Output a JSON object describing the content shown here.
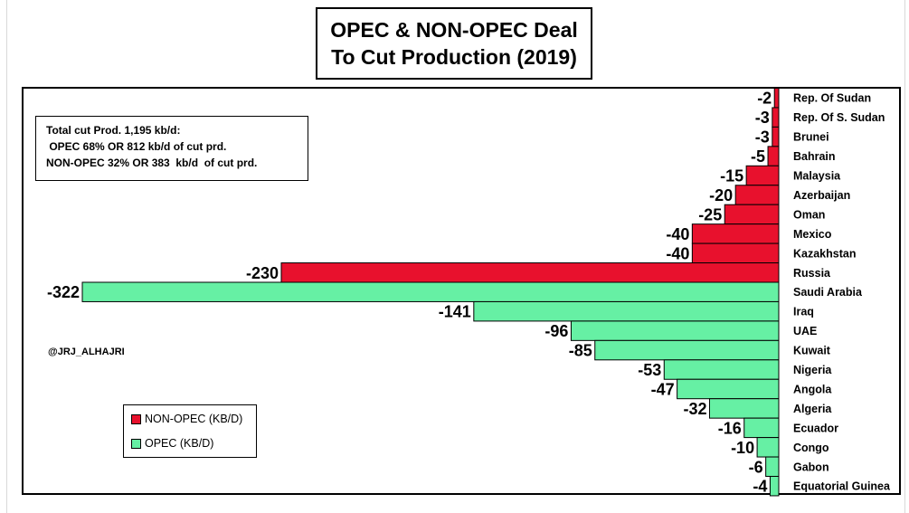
{
  "colors": {
    "non_opec": "#e8112d",
    "opec": "#66f0a4",
    "bar_stroke": "#000000"
  },
  "title": {
    "line1": "OPEC & NON-OPEC Deal",
    "line2": "To Cut Production (2019)"
  },
  "note": {
    "line1": "Total cut Prod. 1,195 kb/d:",
    "line2": " OPEC 68% OR 812 kb/d of cut prd.",
    "line3": "NON-OPEC 32% OR 383  kb/d  of cut prd."
  },
  "credit": "@JRJ_ALHAJRI",
  "legend": {
    "non_opec": "NON-OPEC (KB/D)",
    "opec": "OPEC (KB/D)"
  },
  "chart_data": {
    "type": "bar",
    "orientation": "horizontal",
    "title": "OPEC & NON-OPEC Deal To Cut Production (2019)",
    "xlim": [
      -340,
      0
    ],
    "grid": false,
    "legend_position": "bottom-left",
    "categories": [
      "Rep. Of Sudan",
      "Rep. Of S. Sudan",
      "Brunei",
      "Bahrain",
      "Malaysia",
      "Azerbaijan",
      "Oman",
      "Mexico",
      "Kazakhstan",
      "Russia",
      "Saudi Arabia",
      "Iraq",
      "UAE",
      "Kuwait",
      "Nigeria",
      "Angola",
      "Algeria",
      "Ecuador",
      "Congo",
      "Gabon",
      "Equatorial Guinea"
    ],
    "values": [
      -2,
      -3,
      -3,
      -5,
      -15,
      -20,
      -25,
      -40,
      -40,
      -230,
      -322,
      -141,
      -96,
      -85,
      -53,
      -47,
      -32,
      -16,
      -10,
      -6,
      -4
    ],
    "groups": [
      "non_opec",
      "non_opec",
      "non_opec",
      "non_opec",
      "non_opec",
      "non_opec",
      "non_opec",
      "non_opec",
      "non_opec",
      "non_opec",
      "opec",
      "opec",
      "opec",
      "opec",
      "opec",
      "opec",
      "opec",
      "opec",
      "opec",
      "opec",
      "opec"
    ]
  }
}
